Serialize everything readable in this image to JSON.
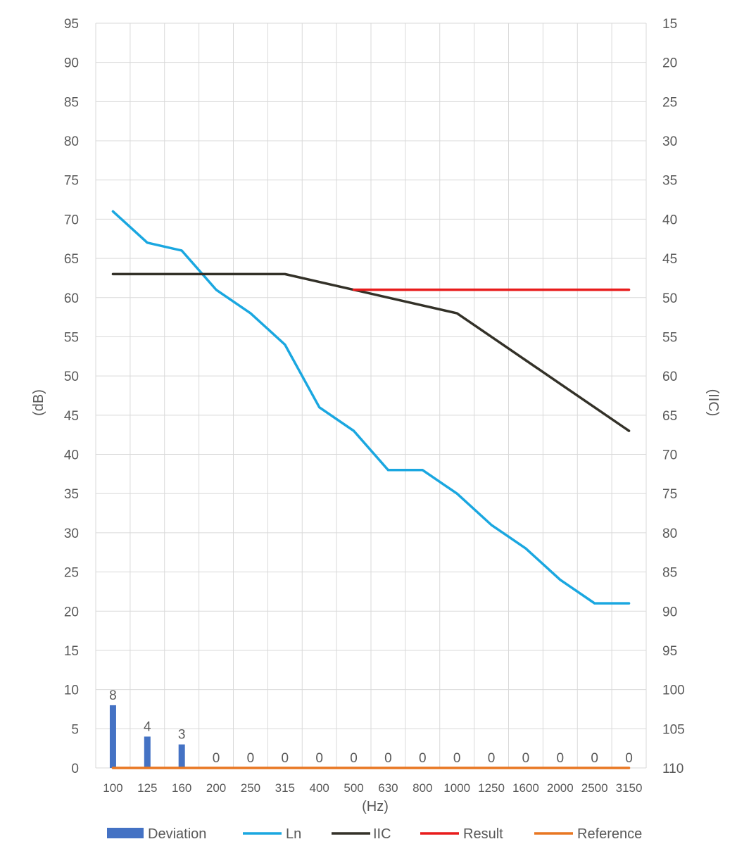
{
  "chart_data": {
    "type": "bar",
    "xlabel": "(Hz)",
    "ylabel": "(dB)",
    "y2label": "(IIC)",
    "ylim": [
      0,
      95
    ],
    "y2lim": [
      110,
      15
    ],
    "ytick_step": 5,
    "legend_position": "bottom",
    "grid": true,
    "categories": [
      "100",
      "125",
      "160",
      "200",
      "250",
      "315",
      "400",
      "500",
      "630",
      "800",
      "1000",
      "1250",
      "1600",
      "2000",
      "2500",
      "3150"
    ],
    "y_ticks": [
      "0",
      "5",
      "10",
      "15",
      "20",
      "25",
      "30",
      "35",
      "40",
      "45",
      "50",
      "55",
      "60",
      "65",
      "70",
      "75",
      "80",
      "85",
      "90",
      "95"
    ],
    "y2_ticks": [
      "110",
      "105",
      "100",
      "95",
      "90",
      "85",
      "80",
      "75",
      "70",
      "65",
      "60",
      "55",
      "50",
      "45",
      "40",
      "35",
      "30",
      "25",
      "20",
      "15"
    ],
    "series": [
      {
        "name": "Deviation",
        "kind": "bar",
        "color": "#4472c4",
        "values": [
          8,
          4,
          3,
          0,
          0,
          0,
          0,
          0,
          0,
          0,
          0,
          0,
          0,
          0,
          0,
          0
        ],
        "labels": [
          "8",
          "4",
          "3",
          "0",
          "0",
          "0",
          "0",
          "0",
          "0",
          "0",
          "0",
          "0",
          "0",
          "0",
          "0",
          "0"
        ]
      },
      {
        "name": "Ln",
        "kind": "line",
        "color": "#1aa7e0",
        "values": [
          71,
          67,
          66,
          61,
          58,
          54,
          46,
          43,
          38,
          38,
          35,
          31,
          28,
          24,
          21,
          21
        ]
      },
      {
        "name": "IIC",
        "kind": "line",
        "color": "#333128",
        "values": [
          63,
          63,
          63,
          63,
          63,
          63,
          62,
          61,
          60,
          59,
          58,
          55,
          52,
          49,
          46,
          43
        ]
      },
      {
        "name": "Result",
        "kind": "line",
        "color": "#e81c1c",
        "values": [
          null,
          null,
          null,
          null,
          null,
          null,
          null,
          61,
          61,
          61,
          61,
          61,
          61,
          61,
          61,
          61
        ]
      },
      {
        "name": "Reference",
        "kind": "line",
        "color": "#e87722",
        "values": [
          0,
          0,
          0,
          0,
          0,
          0,
          0,
          0,
          0,
          0,
          0,
          0,
          0,
          0,
          0,
          0
        ]
      }
    ]
  }
}
